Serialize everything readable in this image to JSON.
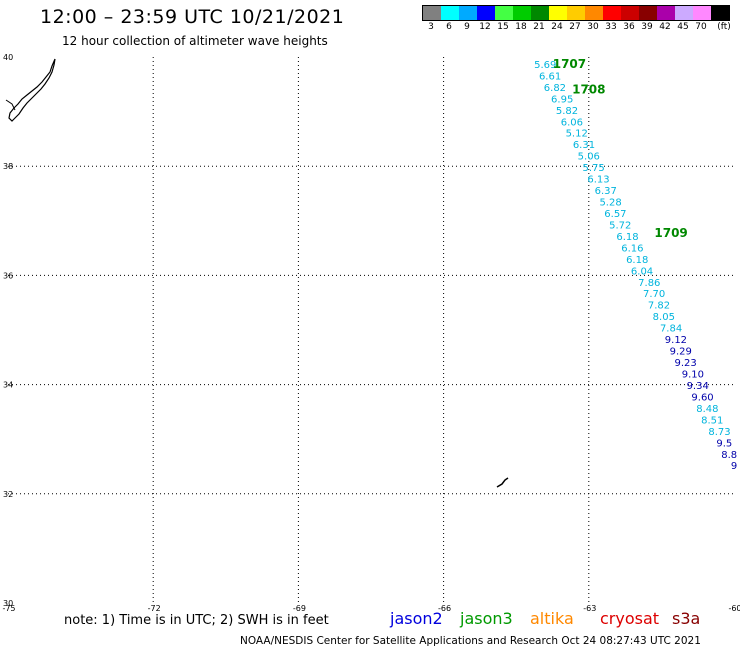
{
  "header": {
    "title": "12:00 – 23:59 UTC 10/21/2021",
    "subtitle": "12 hour collection of altimeter wave heights"
  },
  "legend": {
    "unit": "(ft)",
    "bins": [
      {
        "label": "3",
        "color": "#808080"
      },
      {
        "label": "6",
        "color": "#00ffff"
      },
      {
        "label": "9",
        "color": "#00aaff"
      },
      {
        "label": "12",
        "color": "#0000ff"
      },
      {
        "label": "15",
        "color": "#44ff44"
      },
      {
        "label": "18",
        "color": "#00cc00"
      },
      {
        "label": "21",
        "color": "#008800"
      },
      {
        "label": "24",
        "color": "#ffff00"
      },
      {
        "label": "27",
        "color": "#ffcc00"
      },
      {
        "label": "30",
        "color": "#ff8800"
      },
      {
        "label": "33",
        "color": "#ff0000"
      },
      {
        "label": "36",
        "color": "#cc0000"
      },
      {
        "label": "39",
        "color": "#880000"
      },
      {
        "label": "42",
        "color": "#aa00aa"
      },
      {
        "label": "45",
        "color": "#ccaaff"
      },
      {
        "label": "70",
        "color": "#ff88ff"
      },
      {
        "label": "",
        "color": "#000000"
      }
    ]
  },
  "map": {
    "lon_range": [
      -75,
      -60
    ],
    "lat_range": [
      30,
      40
    ],
    "lon_ticks": [
      "-75",
      "-72",
      "-69",
      "-66",
      "-63",
      "-60"
    ],
    "lat_ticks": [
      "40",
      "38",
      "36",
      "34",
      "32",
      "30"
    ],
    "grid_lons": [
      -72,
      -69,
      -66,
      -63
    ],
    "grid_lats": [
      38,
      36,
      34,
      32
    ]
  },
  "chart_data": {
    "type": "scatter",
    "x_label": "longitude",
    "y_label": "latitude",
    "time_labels": [
      {
        "text": "1707",
        "lon": -63.4,
        "lat": 39.8,
        "color": "#008800"
      },
      {
        "text": "1708",
        "lon": -63.0,
        "lat": 39.33,
        "color": "#008800"
      },
      {
        "text": "1709",
        "lon": -61.3,
        "lat": 36.7,
        "color": "#008800"
      }
    ],
    "series": [
      {
        "name": "jason3",
        "color": "#00b4dd",
        "points": [
          {
            "lon": -63.9,
            "lat": 39.8,
            "swh": "5.69"
          },
          {
            "lon": -63.8,
            "lat": 39.59,
            "swh": "6.61"
          },
          {
            "lon": -63.7,
            "lat": 39.38,
            "swh": "6.82"
          },
          {
            "lon": -63.55,
            "lat": 39.17,
            "swh": "6.95"
          },
          {
            "lon": -63.45,
            "lat": 38.96,
            "swh": "5.82"
          },
          {
            "lon": -63.35,
            "lat": 38.75,
            "swh": "6.06"
          },
          {
            "lon": -63.25,
            "lat": 38.54,
            "swh": "5.12"
          },
          {
            "lon": -63.1,
            "lat": 38.33,
            "swh": "6.31"
          },
          {
            "lon": -63.0,
            "lat": 38.12,
            "swh": "5.06"
          },
          {
            "lon": -62.9,
            "lat": 37.91,
            "swh": "5.75"
          },
          {
            "lon": -62.8,
            "lat": 37.7,
            "swh": "6.13"
          },
          {
            "lon": -62.65,
            "lat": 37.49,
            "swh": "6.37"
          },
          {
            "lon": -62.55,
            "lat": 37.28,
            "swh": "5.28"
          },
          {
            "lon": -62.45,
            "lat": 37.07,
            "swh": "6.57"
          },
          {
            "lon": -62.35,
            "lat": 36.86,
            "swh": "5.72"
          },
          {
            "lon": -62.2,
            "lat": 36.65,
            "swh": "6.18"
          },
          {
            "lon": -62.1,
            "lat": 36.44,
            "swh": "6.16"
          },
          {
            "lon": -62.0,
            "lat": 36.23,
            "swh": "6.18"
          },
          {
            "lon": -61.9,
            "lat": 36.02,
            "swh": "6.04"
          },
          {
            "lon": -61.75,
            "lat": 35.81,
            "swh": "7.86"
          },
          {
            "lon": -61.65,
            "lat": 35.6,
            "swh": "7.70"
          },
          {
            "lon": -61.55,
            "lat": 35.39,
            "swh": "7.82"
          },
          {
            "lon": -61.45,
            "lat": 35.18,
            "swh": "8.05"
          },
          {
            "lon": -61.3,
            "lat": 34.97,
            "swh": "7.84"
          }
        ]
      },
      {
        "name": "jason3-high",
        "color": "#0000aa",
        "points": [
          {
            "lon": -61.2,
            "lat": 34.76,
            "swh": "9.12"
          },
          {
            "lon": -61.1,
            "lat": 34.55,
            "swh": "9.29"
          },
          {
            "lon": -61.0,
            "lat": 34.34,
            "swh": "9.23"
          },
          {
            "lon": -60.85,
            "lat": 34.13,
            "swh": "9.10"
          },
          {
            "lon": -60.75,
            "lat": 33.92,
            "swh": "9.34"
          },
          {
            "lon": -60.65,
            "lat": 33.71,
            "swh": "9.60"
          }
        ]
      },
      {
        "name": "jason3-tail",
        "color": "#00b4dd",
        "points": [
          {
            "lon": -60.55,
            "lat": 33.5,
            "swh": "8.48"
          },
          {
            "lon": -60.45,
            "lat": 33.29,
            "swh": "8.51"
          },
          {
            "lon": -60.3,
            "lat": 33.08,
            "swh": "8.73"
          }
        ]
      },
      {
        "name": "jason3-edge",
        "color": "#0000aa",
        "points": [
          {
            "lon": -60.2,
            "lat": 32.87,
            "swh": "9.5"
          },
          {
            "lon": -60.1,
            "lat": 32.66,
            "swh": "8.8"
          },
          {
            "lon": -60.0,
            "lat": 32.45,
            "swh": "9"
          }
        ]
      }
    ]
  },
  "footer": {
    "note": "note:  1) Time is in UTC; 2) SWH is in feet",
    "satellites": [
      {
        "name": "jason2",
        "color": "#0000dd"
      },
      {
        "name": "jason3",
        "color": "#009900"
      },
      {
        "name": "altika",
        "color": "#ff8800"
      },
      {
        "name": "cryosat",
        "color": "#dd0000"
      },
      {
        "name": "s3a",
        "color": "#880000"
      }
    ],
    "credit": "NOAA/NESDIS Center for Satellite Applications and Research     Oct 24 08:27:43 UTC 2021"
  }
}
